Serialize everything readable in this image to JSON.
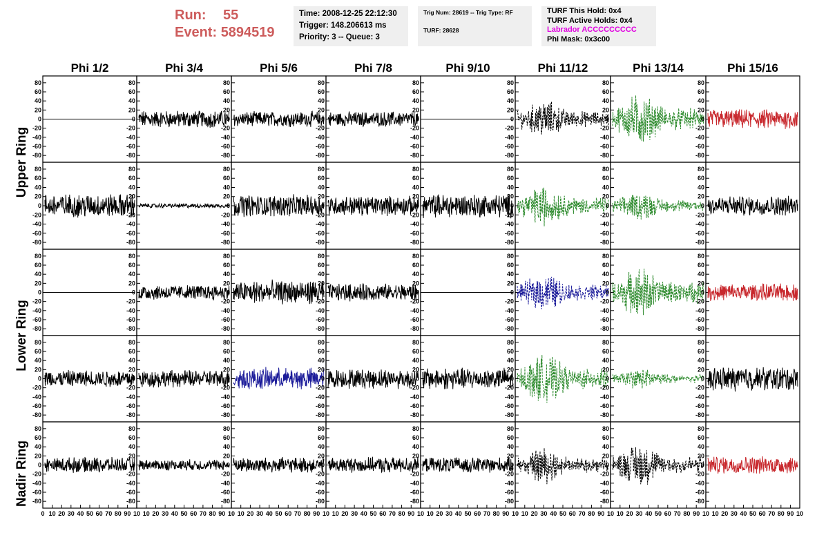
{
  "header": {
    "run_label": "Run:",
    "run_value": "55",
    "event_label": "Event:",
    "event_value": "5894519",
    "time": "Time: 2008-12-25 22:12:30",
    "trigger": "Trigger: 148.206613 ms",
    "priority": "Priority: 3 -- Queue: 3",
    "trig_num": "Trig Num: 28619 -- Trig Type: RF",
    "turf": "TURF: 28628",
    "turf_this_hold": "TURF This Hold: 0x4",
    "turf_active_holds": "TURF Active Holds: 0x4",
    "labrador": "Labrador ACCCCCCCCC",
    "phi_mask": "Phi Mask: 0x3c00"
  },
  "colors": {
    "header_red": "#cd5c5c",
    "info_bg": "#efefef",
    "labrador_magenta": "#e000e0",
    "black": "#000000",
    "green": "#2e8b2e",
    "red": "#c8282d",
    "blue": "#1c1c9a"
  },
  "chart_data": {
    "type": "line",
    "columns": [
      "Phi 1/2",
      "Phi 3/4",
      "Phi 5/6",
      "Phi 7/8",
      "Phi 9/10",
      "Phi 11/12",
      "Phi 13/14",
      "Phi 15/16"
    ],
    "ring_labels": [
      "Upper Ring",
      "Lower Ring",
      "Nadir Ring"
    ],
    "y_ticks": [
      -80,
      -60,
      -40,
      -20,
      0,
      20,
      40,
      60,
      80
    ],
    "ylim": [
      -95,
      95
    ],
    "xlim": [
      0,
      100
    ],
    "x_ticks_first": [
      "0",
      "10",
      "20",
      "30",
      "40",
      "50",
      "60",
      "70",
      "80",
      "90",
      "10"
    ],
    "x_ticks": [
      "10",
      "20",
      "30",
      "40",
      "50",
      "60",
      "70",
      "80",
      "90",
      "10"
    ],
    "rows": [
      [
        {
          "style": "flat",
          "color": "black"
        },
        {
          "amp": 16,
          "color": "black"
        },
        {
          "amp": 14,
          "color": "black"
        },
        {
          "amp": 14,
          "color": "black"
        },
        {
          "style": "flat",
          "color": "black"
        },
        {
          "amp": 30,
          "color": "black",
          "dash": true,
          "burst": true
        },
        {
          "amp": 40,
          "color": "green",
          "dash": true,
          "burst": true
        },
        {
          "amp": 18,
          "color": "red"
        }
      ],
      [
        {
          "amp": 22,
          "color": "black"
        },
        {
          "amp": 4,
          "color": "black"
        },
        {
          "amp": 20,
          "color": "black"
        },
        {
          "amp": 18,
          "color": "black"
        },
        {
          "amp": 22,
          "color": "black"
        },
        {
          "amp": 32,
          "color": "green",
          "dash": true,
          "burst": true
        },
        {
          "amp": 22,
          "color": "green",
          "dash": true,
          "burst": true
        },
        {
          "amp": 18,
          "color": "black"
        }
      ],
      [
        {
          "style": "flat",
          "color": "black"
        },
        {
          "amp": 14,
          "color": "black"
        },
        {
          "amp": 22,
          "color": "black"
        },
        {
          "amp": 16,
          "color": "black"
        },
        {
          "style": "flat",
          "color": "black"
        },
        {
          "amp": 30,
          "color": "blue",
          "dash": true,
          "burst": true
        },
        {
          "amp": 40,
          "color": "green",
          "dash": true,
          "burst": true
        },
        {
          "amp": 16,
          "color": "red"
        }
      ],
      [
        {
          "amp": 16,
          "color": "black"
        },
        {
          "amp": 16,
          "color": "black"
        },
        {
          "amp": 20,
          "color": "blue"
        },
        {
          "amp": 18,
          "color": "black"
        },
        {
          "amp": 20,
          "color": "black"
        },
        {
          "amp": 38,
          "color": "green",
          "dash": true,
          "burst": true
        },
        {
          "amp": 16,
          "color": "green",
          "dash": true,
          "burst": true
        },
        {
          "amp": 22,
          "color": "black"
        }
      ],
      [
        {
          "amp": 14,
          "color": "black"
        },
        {
          "amp": 10,
          "color": "black"
        },
        {
          "amp": 14,
          "color": "black"
        },
        {
          "amp": 14,
          "color": "black"
        },
        {
          "amp": 14,
          "color": "black"
        },
        {
          "amp": 28,
          "color": "black",
          "dash": true,
          "burst": true
        },
        {
          "amp": 34,
          "color": "black",
          "dash": true,
          "burst": true
        },
        {
          "amp": 16,
          "color": "red"
        }
      ]
    ]
  }
}
